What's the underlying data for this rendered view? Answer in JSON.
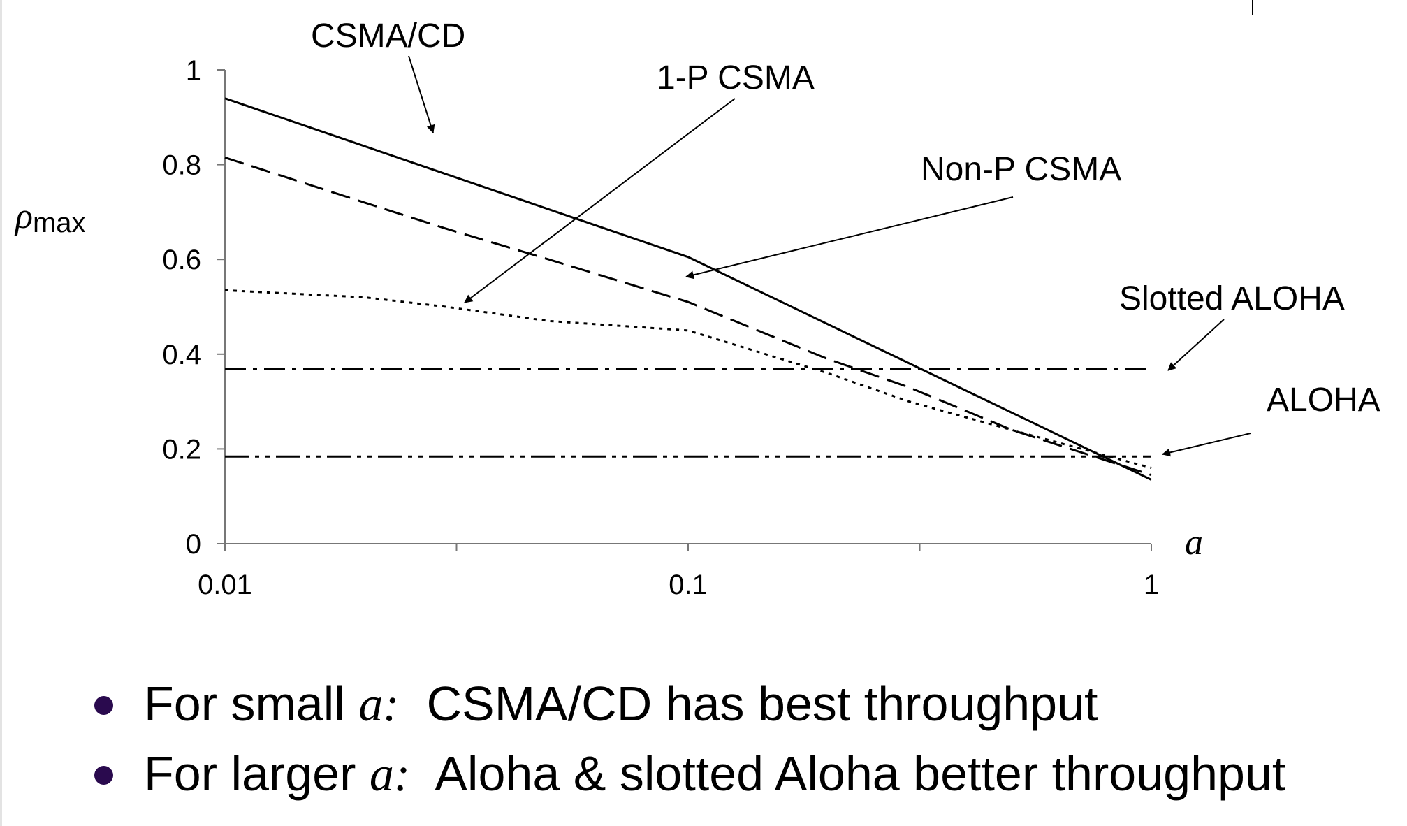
{
  "chart_data": {
    "type": "line",
    "xscale": "log",
    "xlim": [
      0.01,
      1
    ],
    "ylim": [
      0,
      1
    ],
    "x_ticks": [
      "0.01",
      "0.1",
      "1"
    ],
    "y_ticks": [
      "0",
      "0.2",
      "0.4",
      "0.6",
      "0.8",
      "1"
    ],
    "ylabel_symbol": "ρ",
    "ylabel_subscript": "max",
    "xlabel": "a",
    "grid": false,
    "series": [
      {
        "name": "CSMA/CD",
        "style": "solid",
        "x": [
          0.01,
          0.1,
          1
        ],
        "y": [
          0.94,
          0.605,
          0.135
        ]
      },
      {
        "name": "Non-P CSMA",
        "style": "dashed",
        "x": [
          0.01,
          0.02,
          0.03,
          0.05,
          0.1,
          0.2,
          0.3,
          0.5,
          1
        ],
        "y": [
          0.815,
          0.72,
          0.665,
          0.6,
          0.51,
          0.39,
          0.33,
          0.24,
          0.145
        ]
      },
      {
        "name": "1-P CSMA",
        "style": "dotted",
        "x": [
          0.01,
          0.02,
          0.03,
          0.05,
          0.1,
          0.2,
          0.3,
          0.5,
          1
        ],
        "y": [
          0.535,
          0.52,
          0.5,
          0.47,
          0.45,
          0.36,
          0.3,
          0.24,
          0.16
        ]
      },
      {
        "name": "Slotted ALOHA",
        "style": "dash-dot",
        "x": [
          0.01,
          1
        ],
        "y": [
          0.368,
          0.368
        ]
      },
      {
        "name": "ALOHA",
        "style": "dash-dot-dot",
        "x": [
          0.01,
          1
        ],
        "y": [
          0.184,
          0.184
        ]
      }
    ]
  },
  "bullets": [
    {
      "before": "For small ",
      "var": "a:",
      "after": "  CSMA/CD has best throughput"
    },
    {
      "before": "For larger ",
      "var": "a:",
      "after": "  Aloha & slotted Aloha better throughput"
    }
  ]
}
